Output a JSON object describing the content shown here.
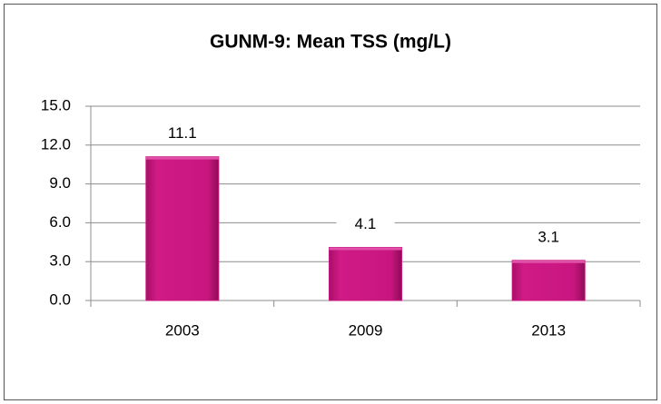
{
  "chart_data": {
    "type": "bar",
    "title": "GUNM-9: Mean TSS (mg/L)",
    "categories": [
      "2003",
      "2009",
      "2013"
    ],
    "values": [
      11.1,
      4.1,
      3.1
    ],
    "color": "#c8167f",
    "ylim": [
      0,
      15
    ],
    "yticks": [
      {
        "value": 0,
        "label": "0.0"
      },
      {
        "value": 3,
        "label": "3.0"
      },
      {
        "value": 6,
        "label": "6.0"
      },
      {
        "value": 9,
        "label": "9.0"
      },
      {
        "value": 12,
        "label": "12.0"
      },
      {
        "value": 15,
        "label": "15.0"
      }
    ],
    "grid": true
  }
}
